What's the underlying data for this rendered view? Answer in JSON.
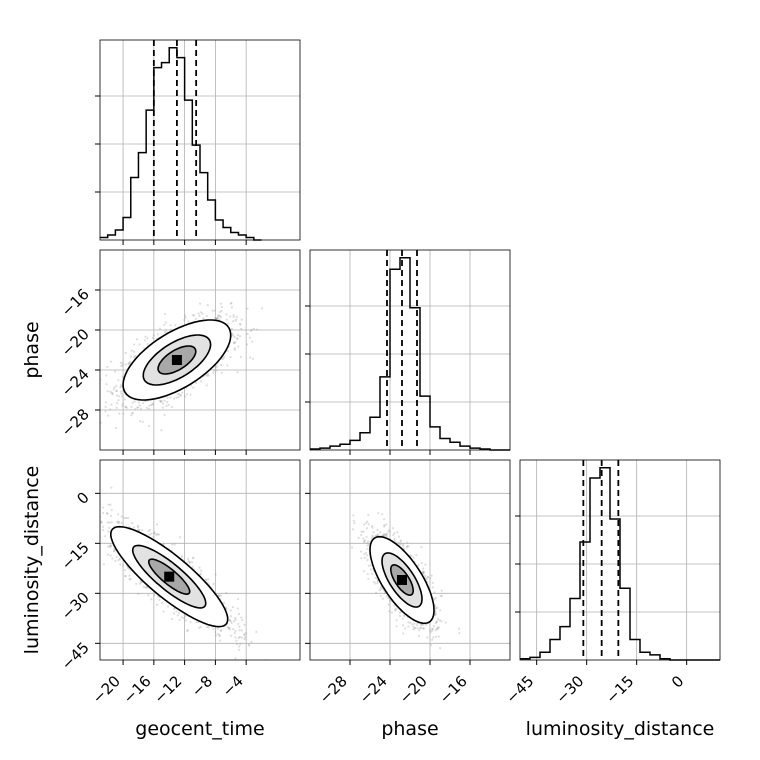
{
  "chart_data": {
    "type": "corner",
    "parameters": [
      "geocent_time",
      "phase",
      "luminosity_distance"
    ],
    "axis_labels": {
      "geocent_time": "geocent_time",
      "phase": "phase",
      "luminosity_distance": "luminosity_distance"
    },
    "ranges": {
      "geocent_time": [
        -23,
        3
      ],
      "phase": [
        -32,
        -12
      ],
      "luminosity_distance": [
        -50,
        10
      ]
    },
    "ticks": {
      "geocent_time": [
        -20,
        -16,
        -12,
        -8,
        -4
      ],
      "phase": [
        -28,
        -24,
        -20,
        -16
      ],
      "luminosity_distance": [
        -45,
        -30,
        -15,
        0
      ]
    },
    "grid": true,
    "line_color": "#000000",
    "point_color": "#9e9e9e",
    "histograms": [
      {
        "param": "geocent_time",
        "bin_edges": [
          -23,
          -22,
          -21,
          -20,
          -19,
          -18,
          -17,
          -16,
          -15,
          -14,
          -13,
          -12,
          -11,
          -10,
          -9,
          -8,
          -7,
          -6,
          -5,
          -4,
          -3,
          -2
        ],
        "counts": [
          1,
          2,
          4,
          9,
          25,
          35,
          52,
          69,
          71,
          77,
          73,
          56,
          38,
          27,
          16,
          8,
          5,
          3,
          2,
          1,
          0
        ],
        "quantiles": [
          -16.0,
          -13.0,
          -10.5
        ]
      },
      {
        "param": "phase",
        "bin_edges": [
          -32,
          -31,
          -30,
          -29,
          -28,
          -27,
          -26,
          -25,
          -24,
          -23,
          -22,
          -21,
          -20,
          -19,
          -18,
          -17,
          -16,
          -15,
          -14,
          -13,
          -12
        ],
        "counts": [
          0.5,
          1,
          2,
          3,
          5,
          9,
          17,
          38,
          94,
          100,
          74,
          28,
          12,
          6,
          4,
          2,
          1,
          0.5,
          0,
          0
        ],
        "quantiles": [
          -24.3,
          -22.8,
          -21.3
        ]
      },
      {
        "param": "luminosity_distance",
        "bin_edges": [
          -50,
          -47,
          -44,
          -41,
          -38,
          -35,
          -32,
          -29,
          -26,
          -23,
          -20,
          -17,
          -14,
          -11,
          -8,
          -5,
          -2,
          1,
          4,
          7,
          10
        ],
        "counts": [
          0.5,
          1,
          3,
          8,
          13,
          24,
          46,
          71,
          75,
          55,
          28,
          8,
          3,
          2,
          0.5,
          0,
          0,
          0,
          0,
          0
        ],
        "quantiles": [
          -31.0,
          -25.5,
          -20.5
        ]
      }
    ],
    "joint_2d": [
      {
        "x": "geocent_time",
        "y": "phase",
        "center": [
          -13.0,
          -23.0
        ],
        "sigma": [
          3.5,
          2.0
        ],
        "correlation": 0.62
      },
      {
        "x": "geocent_time",
        "y": "luminosity_distance",
        "center": [
          -14.0,
          -25.0
        ],
        "sigma": [
          3.8,
          7.5
        ],
        "correlation": -0.85
      },
      {
        "x": "phase",
        "y": "luminosity_distance",
        "center": [
          -22.8,
          -26.0
        ],
        "sigma": [
          1.6,
          6.5
        ],
        "correlation": -0.7
      }
    ]
  }
}
